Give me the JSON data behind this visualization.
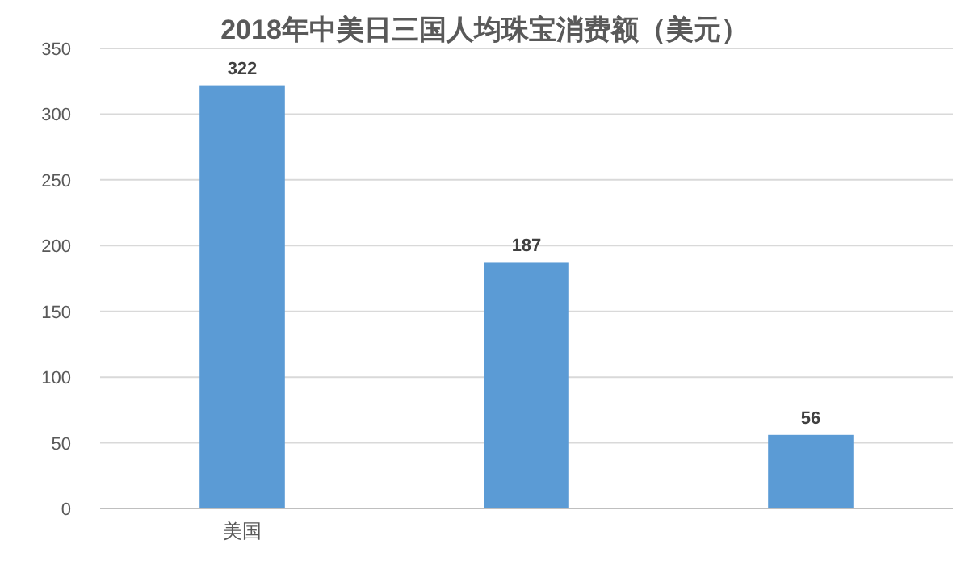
{
  "chart_data": {
    "type": "bar",
    "title": "2018年中美日三国人均珠宝消费额（美元）",
    "categories": [
      "美国",
      null,
      null
    ],
    "values": [
      322,
      187,
      56
    ],
    "color": "#5b9bd5",
    "ylim": [
      0,
      350
    ],
    "yticks": [
      0,
      50,
      100,
      150,
      200,
      250,
      300,
      350
    ],
    "grid": "y",
    "data_labels": true
  }
}
